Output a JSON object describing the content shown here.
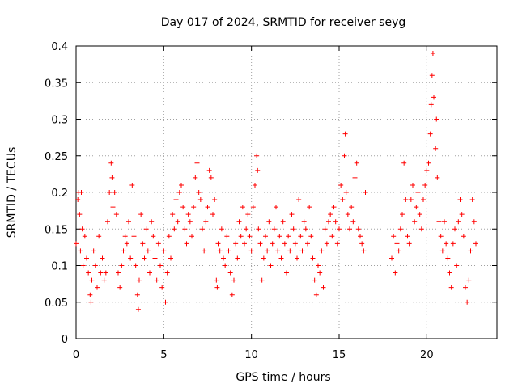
{
  "chart_data": {
    "type": "scatter",
    "title": "Day 017 of 2024, SRMTID for receiver seyg",
    "xlabel": "GPS time / hours",
    "ylabel": "SRMTID / TECUs",
    "xlim": [
      0,
      24
    ],
    "ylim": [
      0,
      0.4
    ],
    "xticks": [
      0,
      5,
      10,
      15,
      20
    ],
    "yticks": [
      0,
      0.05,
      0.1,
      0.15,
      0.2,
      0.25,
      0.3,
      0.35,
      0.4
    ],
    "xtick_labels": [
      "0",
      "5",
      "10",
      "15",
      "20"
    ],
    "ytick_labels": [
      "0",
      "0.05",
      "0.1",
      "0.15",
      "0.2",
      "0.25",
      "0.3",
      "0.35",
      "0.4"
    ],
    "grid": true,
    "marker": "+",
    "color": "#ff0000",
    "series": [
      {
        "name": "SRMTID",
        "points": [
          [
            0.0,
            0.13
          ],
          [
            0.1,
            0.19
          ],
          [
            0.15,
            0.2
          ],
          [
            0.2,
            0.17
          ],
          [
            0.25,
            0.12
          ],
          [
            0.3,
            0.2
          ],
          [
            0.35,
            0.15
          ],
          [
            0.4,
            0.1
          ],
          [
            0.5,
            0.14
          ],
          [
            0.6,
            0.11
          ],
          [
            0.7,
            0.09
          ],
          [
            0.8,
            0.06
          ],
          [
            0.85,
            0.05
          ],
          [
            0.9,
            0.08
          ],
          [
            1.0,
            0.12
          ],
          [
            1.1,
            0.1
          ],
          [
            1.2,
            0.07
          ],
          [
            1.3,
            0.14
          ],
          [
            1.4,
            0.09
          ],
          [
            1.5,
            0.11
          ],
          [
            1.6,
            0.08
          ],
          [
            1.7,
            0.09
          ],
          [
            1.8,
            0.16
          ],
          [
            1.9,
            0.2
          ],
          [
            2.0,
            0.24
          ],
          [
            2.05,
            0.22
          ],
          [
            2.1,
            0.18
          ],
          [
            2.2,
            0.2
          ],
          [
            2.3,
            0.17
          ],
          [
            2.4,
            0.09
          ],
          [
            2.5,
            0.07
          ],
          [
            2.6,
            0.1
          ],
          [
            2.7,
            0.12
          ],
          [
            2.8,
            0.14
          ],
          [
            2.9,
            0.13
          ],
          [
            3.0,
            0.16
          ],
          [
            3.1,
            0.11
          ],
          [
            3.2,
            0.21
          ],
          [
            3.3,
            0.14
          ],
          [
            3.4,
            0.1
          ],
          [
            3.5,
            0.06
          ],
          [
            3.55,
            0.04
          ],
          [
            3.6,
            0.08
          ],
          [
            3.7,
            0.17
          ],
          [
            3.8,
            0.13
          ],
          [
            3.9,
            0.11
          ],
          [
            4.0,
            0.15
          ],
          [
            4.1,
            0.12
          ],
          [
            4.2,
            0.09
          ],
          [
            4.3,
            0.16
          ],
          [
            4.4,
            0.14
          ],
          [
            4.5,
            0.11
          ],
          [
            4.6,
            0.08
          ],
          [
            4.7,
            0.13
          ],
          [
            4.8,
            0.1
          ],
          [
            4.9,
            0.07
          ],
          [
            5.0,
            0.12
          ],
          [
            5.1,
            0.05
          ],
          [
            5.2,
            0.09
          ],
          [
            5.3,
            0.14
          ],
          [
            5.4,
            0.11
          ],
          [
            5.5,
            0.17
          ],
          [
            5.6,
            0.15
          ],
          [
            5.7,
            0.19
          ],
          [
            5.8,
            0.16
          ],
          [
            5.9,
            0.2
          ],
          [
            6.0,
            0.21
          ],
          [
            6.1,
            0.18
          ],
          [
            6.2,
            0.15
          ],
          [
            6.3,
            0.13
          ],
          [
            6.4,
            0.17
          ],
          [
            6.5,
            0.16
          ],
          [
            6.6,
            0.14
          ],
          [
            6.7,
            0.18
          ],
          [
            6.8,
            0.22
          ],
          [
            6.9,
            0.24
          ],
          [
            7.0,
            0.2
          ],
          [
            7.1,
            0.19
          ],
          [
            7.2,
            0.15
          ],
          [
            7.3,
            0.12
          ],
          [
            7.4,
            0.16
          ],
          [
            7.5,
            0.18
          ],
          [
            7.6,
            0.23
          ],
          [
            7.7,
            0.22
          ],
          [
            7.8,
            0.17
          ],
          [
            7.9,
            0.19
          ],
          [
            8.0,
            0.08
          ],
          [
            8.05,
            0.07
          ],
          [
            8.1,
            0.13
          ],
          [
            8.2,
            0.12
          ],
          [
            8.3,
            0.15
          ],
          [
            8.4,
            0.11
          ],
          [
            8.5,
            0.1
          ],
          [
            8.6,
            0.14
          ],
          [
            8.7,
            0.12
          ],
          [
            8.8,
            0.09
          ],
          [
            8.9,
            0.06
          ],
          [
            9.0,
            0.08
          ],
          [
            9.1,
            0.13
          ],
          [
            9.2,
            0.11
          ],
          [
            9.3,
            0.16
          ],
          [
            9.4,
            0.14
          ],
          [
            9.5,
            0.18
          ],
          [
            9.6,
            0.13
          ],
          [
            9.7,
            0.15
          ],
          [
            9.8,
            0.17
          ],
          [
            9.9,
            0.14
          ],
          [
            10.0,
            0.12
          ],
          [
            10.1,
            0.18
          ],
          [
            10.2,
            0.21
          ],
          [
            10.3,
            0.25
          ],
          [
            10.35,
            0.23
          ],
          [
            10.4,
            0.15
          ],
          [
            10.5,
            0.13
          ],
          [
            10.6,
            0.08
          ],
          [
            10.7,
            0.11
          ],
          [
            10.8,
            0.14
          ],
          [
            10.9,
            0.12
          ],
          [
            11.0,
            0.16
          ],
          [
            11.1,
            0.1
          ],
          [
            11.2,
            0.13
          ],
          [
            11.3,
            0.15
          ],
          [
            11.4,
            0.18
          ],
          [
            11.5,
            0.12
          ],
          [
            11.6,
            0.14
          ],
          [
            11.7,
            0.11
          ],
          [
            11.8,
            0.16
          ],
          [
            11.9,
            0.13
          ],
          [
            12.0,
            0.09
          ],
          [
            12.1,
            0.14
          ],
          [
            12.2,
            0.12
          ],
          [
            12.3,
            0.17
          ],
          [
            12.4,
            0.15
          ],
          [
            12.5,
            0.13
          ],
          [
            12.6,
            0.11
          ],
          [
            12.7,
            0.19
          ],
          [
            12.8,
            0.14
          ],
          [
            12.9,
            0.12
          ],
          [
            13.0,
            0.16
          ],
          [
            13.1,
            0.15
          ],
          [
            13.2,
            0.13
          ],
          [
            13.3,
            0.18
          ],
          [
            13.4,
            0.14
          ],
          [
            13.5,
            0.11
          ],
          [
            13.6,
            0.08
          ],
          [
            13.7,
            0.06
          ],
          [
            13.8,
            0.1
          ],
          [
            13.9,
            0.09
          ],
          [
            14.0,
            0.12
          ],
          [
            14.1,
            0.07
          ],
          [
            14.2,
            0.15
          ],
          [
            14.3,
            0.13
          ],
          [
            14.4,
            0.16
          ],
          [
            14.5,
            0.17
          ],
          [
            14.6,
            0.14
          ],
          [
            14.7,
            0.18
          ],
          [
            14.8,
            0.16
          ],
          [
            14.9,
            0.13
          ],
          [
            15.0,
            0.15
          ],
          [
            15.1,
            0.21
          ],
          [
            15.2,
            0.19
          ],
          [
            15.3,
            0.25
          ],
          [
            15.35,
            0.28
          ],
          [
            15.4,
            0.2
          ],
          [
            15.5,
            0.17
          ],
          [
            15.6,
            0.15
          ],
          [
            15.7,
            0.18
          ],
          [
            15.8,
            0.16
          ],
          [
            15.9,
            0.22
          ],
          [
            16.0,
            0.24
          ],
          [
            16.1,
            0.15
          ],
          [
            16.2,
            0.14
          ],
          [
            16.3,
            0.13
          ],
          [
            16.4,
            0.12
          ],
          [
            16.5,
            0.2
          ],
          [
            18.0,
            0.11
          ],
          [
            18.1,
            0.14
          ],
          [
            18.2,
            0.09
          ],
          [
            18.3,
            0.13
          ],
          [
            18.4,
            0.12
          ],
          [
            18.5,
            0.15
          ],
          [
            18.6,
            0.17
          ],
          [
            18.7,
            0.24
          ],
          [
            18.8,
            0.19
          ],
          [
            18.9,
            0.14
          ],
          [
            19.0,
            0.13
          ],
          [
            19.1,
            0.19
          ],
          [
            19.2,
            0.21
          ],
          [
            19.3,
            0.16
          ],
          [
            19.4,
            0.18
          ],
          [
            19.5,
            0.2
          ],
          [
            19.6,
            0.17
          ],
          [
            19.7,
            0.15
          ],
          [
            19.8,
            0.19
          ],
          [
            19.9,
            0.21
          ],
          [
            20.0,
            0.23
          ],
          [
            20.1,
            0.24
          ],
          [
            20.2,
            0.28
          ],
          [
            20.25,
            0.32
          ],
          [
            20.3,
            0.36
          ],
          [
            20.35,
            0.39
          ],
          [
            20.4,
            0.33
          ],
          [
            20.5,
            0.26
          ],
          [
            20.55,
            0.3
          ],
          [
            20.6,
            0.22
          ],
          [
            20.7,
            0.16
          ],
          [
            20.8,
            0.14
          ],
          [
            20.9,
            0.12
          ],
          [
            21.0,
            0.16
          ],
          [
            21.1,
            0.13
          ],
          [
            21.2,
            0.11
          ],
          [
            21.3,
            0.09
          ],
          [
            21.4,
            0.07
          ],
          [
            21.5,
            0.13
          ],
          [
            21.6,
            0.15
          ],
          [
            21.7,
            0.1
          ],
          [
            21.8,
            0.16
          ],
          [
            21.9,
            0.19
          ],
          [
            22.0,
            0.17
          ],
          [
            22.1,
            0.14
          ],
          [
            22.2,
            0.07
          ],
          [
            22.3,
            0.05
          ],
          [
            22.4,
            0.08
          ],
          [
            22.5,
            0.12
          ],
          [
            22.6,
            0.19
          ],
          [
            22.7,
            0.16
          ],
          [
            22.8,
            0.13
          ]
        ]
      }
    ]
  }
}
